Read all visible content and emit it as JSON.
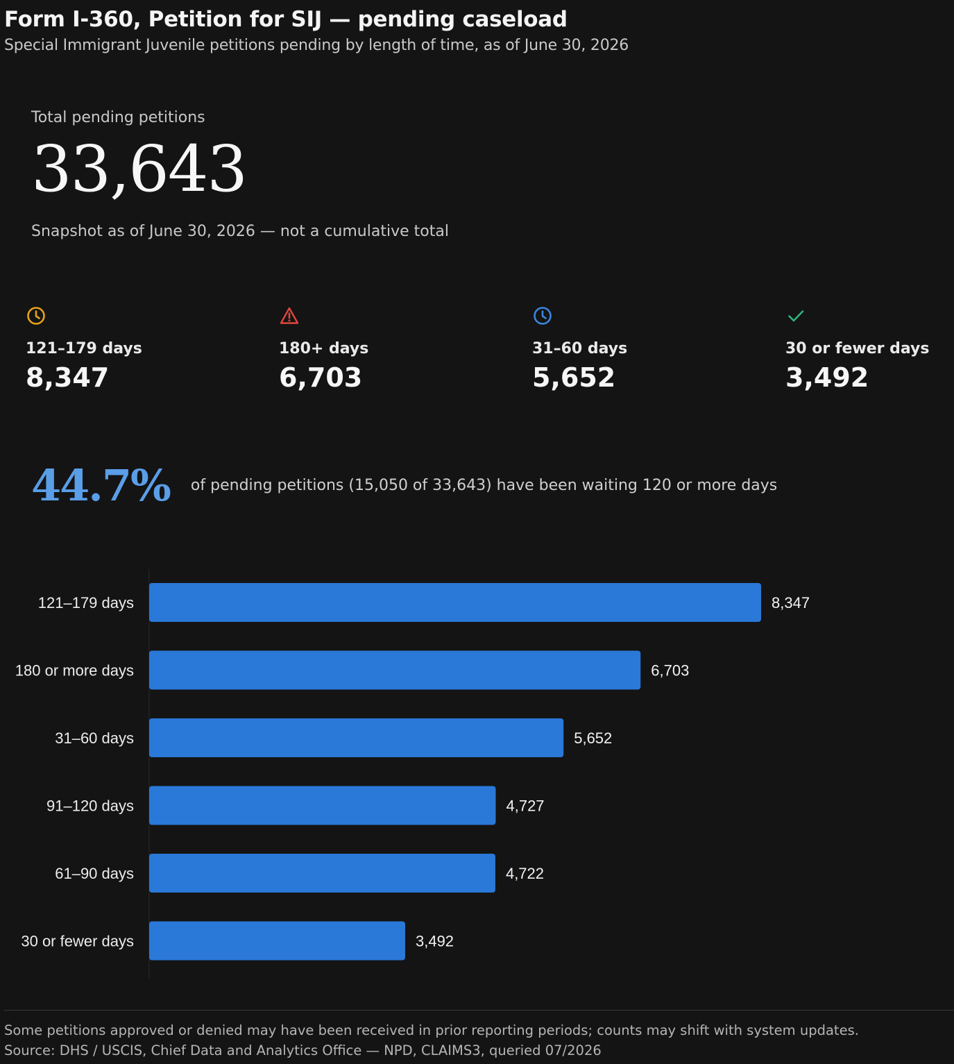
{
  "header": {
    "title": "Form I-360, Petition for SIJ — pending caseload",
    "subtitle": "Special Immigrant Juvenile petitions pending by length of time, as of June 30, 2026"
  },
  "total": {
    "label": "Total pending petitions",
    "value": "33,643",
    "note": "Snapshot as of June 30, 2026 — not a cumulative total"
  },
  "kpis": [
    {
      "icon": "clock-icon",
      "color": "#e8a317",
      "label": "121–179 days",
      "value": "8,347"
    },
    {
      "icon": "warning-icon",
      "color": "#e0463e",
      "label": "180+ days",
      "value": "6,703"
    },
    {
      "icon": "clock-icon",
      "color": "#3a86e0",
      "label": "31–60 days",
      "value": "5,652"
    },
    {
      "icon": "check-icon",
      "color": "#2fb37a",
      "label": "30 or fewer days",
      "value": "3,492"
    }
  ],
  "share": {
    "value": "44.7%",
    "text": "of pending petitions (15,050 of 33,643) have been waiting 120 or more days"
  },
  "chart_data": {
    "type": "bar",
    "orientation": "horizontal",
    "categories": [
      "121–179 days",
      "180 or more days",
      "31–60 days",
      "91–120 days",
      "61–90 days",
      "30 or fewer days"
    ],
    "values": [
      8347,
      6703,
      5652,
      4727,
      4722,
      3492
    ],
    "value_labels": [
      "8,347",
      "6,703",
      "5,652",
      "4,727",
      "4,722",
      "3,492"
    ],
    "bar_color": "#2a78d8",
    "xlabel": "",
    "ylabel": "",
    "grid": false
  },
  "footer": {
    "note": "Some petitions approved or denied may have been received in prior reporting periods; counts may shift with system updates.",
    "source": "Source: DHS / USCIS, Chief Data and Analytics Office — NPD, CLAIMS3, queried 07/2026"
  }
}
